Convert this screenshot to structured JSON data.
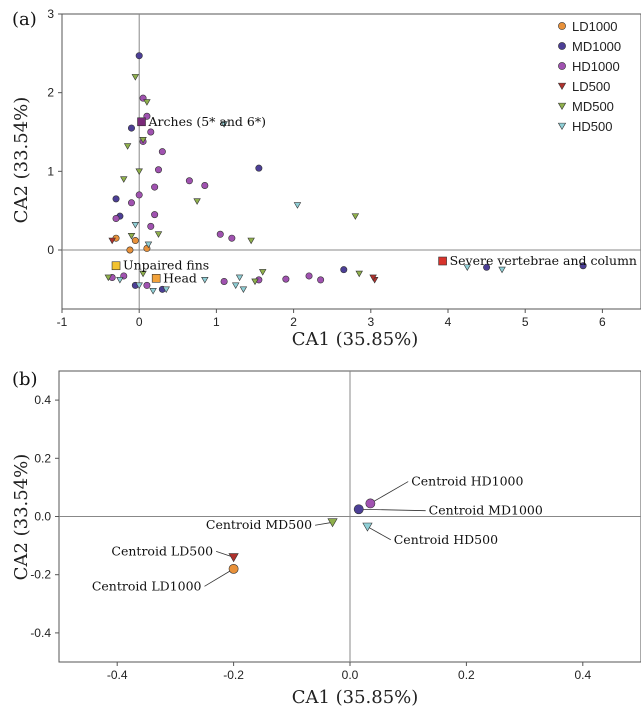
{
  "chart_data": [
    {
      "panel": "(a)",
      "type": "scatter",
      "xlabel": "CA1 (35.85%)",
      "ylabel": "CA2 (33.54%)",
      "xlim": [
        -1,
        6.5
      ],
      "ylim": [
        -0.75,
        3
      ],
      "xticks": [
        "-1",
        "0",
        "1",
        "2",
        "3",
        "4",
        "5",
        "6"
      ],
      "yticks": [
        "0",
        "1",
        "2",
        "3"
      ],
      "grid": false,
      "legend": "top-right",
      "series": [
        {
          "name": "LD1000",
          "marker": "circle",
          "color": "#e8913a",
          "points": [
            [
              -0.05,
              0.12
            ],
            [
              -0.3,
              0.15
            ],
            [
              0.1,
              0.02
            ],
            [
              -0.12,
              0.0
            ]
          ]
        },
        {
          "name": "MD1000",
          "marker": "circle",
          "color": "#4c3f96",
          "points": [
            [
              0.0,
              2.47
            ],
            [
              -0.1,
              1.55
            ],
            [
              -0.3,
              0.65
            ],
            [
              -0.25,
              0.43
            ],
            [
              -0.05,
              -0.45
            ],
            [
              0.3,
              -0.5
            ],
            [
              2.65,
              -0.25
            ],
            [
              5.75,
              -0.2
            ],
            [
              4.5,
              -0.22
            ],
            [
              1.55,
              1.04
            ]
          ]
        },
        {
          "name": "HD1000",
          "marker": "circle",
          "color": "#a052b0",
          "points": [
            [
              0.05,
              1.93
            ],
            [
              0.1,
              1.7
            ],
            [
              0.15,
              1.5
            ],
            [
              0.05,
              1.38
            ],
            [
              0.3,
              1.25
            ],
            [
              0.65,
              0.88
            ],
            [
              0.85,
              0.82
            ],
            [
              0.25,
              1.02
            ],
            [
              0.2,
              0.8
            ],
            [
              0.0,
              0.7
            ],
            [
              0.2,
              0.45
            ],
            [
              -0.1,
              0.6
            ],
            [
              -0.3,
              0.4
            ],
            [
              0.15,
              0.3
            ],
            [
              1.05,
              0.2
            ],
            [
              1.2,
              0.15
            ],
            [
              1.1,
              -0.4
            ],
            [
              1.55,
              -0.38
            ],
            [
              1.9,
              -0.37
            ],
            [
              2.2,
              -0.33
            ],
            [
              2.35,
              -0.38
            ],
            [
              0.1,
              -0.45
            ],
            [
              -0.2,
              -0.33
            ],
            [
              -0.35,
              -0.35
            ]
          ]
        },
        {
          "name": "LD500",
          "marker": "triangle-down",
          "color": "#b0312d",
          "points": [
            [
              -0.35,
              0.12
            ],
            [
              3.05,
              -0.38
            ],
            [
              3.03,
              -0.35
            ]
          ]
        },
        {
          "name": "MD500",
          "marker": "triangle-down",
          "color": "#8fb04c",
          "points": [
            [
              -0.05,
              2.2
            ],
            [
              0.1,
              1.88
            ],
            [
              -0.15,
              1.32
            ],
            [
              0.05,
              1.4
            ],
            [
              0.75,
              0.62
            ],
            [
              0.0,
              1.0
            ],
            [
              -0.2,
              0.9
            ],
            [
              0.25,
              0.2
            ],
            [
              -0.1,
              0.18
            ],
            [
              1.45,
              0.12
            ],
            [
              2.8,
              0.43
            ],
            [
              1.6,
              -0.28
            ],
            [
              2.85,
              -0.3
            ],
            [
              1.5,
              -0.4
            ],
            [
              0.05,
              -0.3
            ],
            [
              -0.4,
              -0.35
            ]
          ]
        },
        {
          "name": "HD500",
          "marker": "triangle-down",
          "color": "#8fcfd6",
          "points": [
            [
              1.1,
              1.6
            ],
            [
              2.05,
              0.57
            ],
            [
              -0.05,
              0.32
            ],
            [
              0.12,
              0.07
            ],
            [
              0.85,
              -0.38
            ],
            [
              1.25,
              -0.45
            ],
            [
              1.3,
              -0.35
            ],
            [
              4.25,
              -0.22
            ],
            [
              4.7,
              -0.25
            ],
            [
              1.35,
              -0.5
            ],
            [
              -0.25,
              -0.38
            ],
            [
              0.0,
              -0.45
            ],
            [
              0.18,
              -0.52
            ],
            [
              0.35,
              -0.5
            ]
          ]
        }
      ],
      "annotations": [
        {
          "text": "Arches (5* and 6*)",
          "x": 0.03,
          "y": 1.63,
          "marker_color": "#7a2a7a"
        },
        {
          "text": "Unpaired fins",
          "x": -0.3,
          "y": -0.2,
          "marker_color": "#f2c230"
        },
        {
          "text": "Head",
          "x": 0.22,
          "y": -0.36,
          "marker_color": "#f2a23a"
        },
        {
          "text": "Severe vertebrae and column",
          "x": 3.93,
          "y": -0.14,
          "marker_color": "#d8332c"
        }
      ]
    },
    {
      "panel": "(b)",
      "type": "scatter",
      "xlabel": "CA1 (35.85%)",
      "ylabel": "CA2 (33.54%)",
      "xlim": [
        -0.5,
        0.5
      ],
      "ylim": [
        -0.5,
        0.5
      ],
      "xticks": [
        "-0.4",
        "-0.2",
        "0.0",
        "0.2",
        "0.4"
      ],
      "yticks": [
        "-0.4",
        "-0.2",
        "0.0",
        "0.2",
        "0.4"
      ],
      "grid": false,
      "centroids": [
        {
          "label": "Centroid HD1000",
          "x": 0.035,
          "y": 0.045,
          "marker": "circle",
          "color": "#a052b0",
          "label_x": 0.1,
          "label_y": 0.12
        },
        {
          "label": "Centroid MD1000",
          "x": 0.015,
          "y": 0.025,
          "marker": "circle",
          "color": "#4c3f96",
          "label_x": 0.13,
          "label_y": 0.02
        },
        {
          "label": "Centroid MD500",
          "x": -0.03,
          "y": -0.02,
          "marker": "triangle-down",
          "color": "#8fb04c",
          "label_x": -0.06,
          "label_y": -0.03
        },
        {
          "label": "Centroid HD500",
          "x": 0.03,
          "y": -0.035,
          "marker": "triangle-down",
          "color": "#8fcfd6",
          "label_x": 0.07,
          "label_y": -0.08
        },
        {
          "label": "Centroid LD500",
          "x": -0.2,
          "y": -0.14,
          "marker": "triangle-down",
          "color": "#b0312d",
          "label_x": -0.23,
          "label_y": -0.12
        },
        {
          "label": "Centroid LD1000",
          "x": -0.2,
          "y": -0.18,
          "marker": "circle",
          "color": "#e8913a",
          "label_x": -0.25,
          "label_y": -0.24
        }
      ]
    }
  ]
}
